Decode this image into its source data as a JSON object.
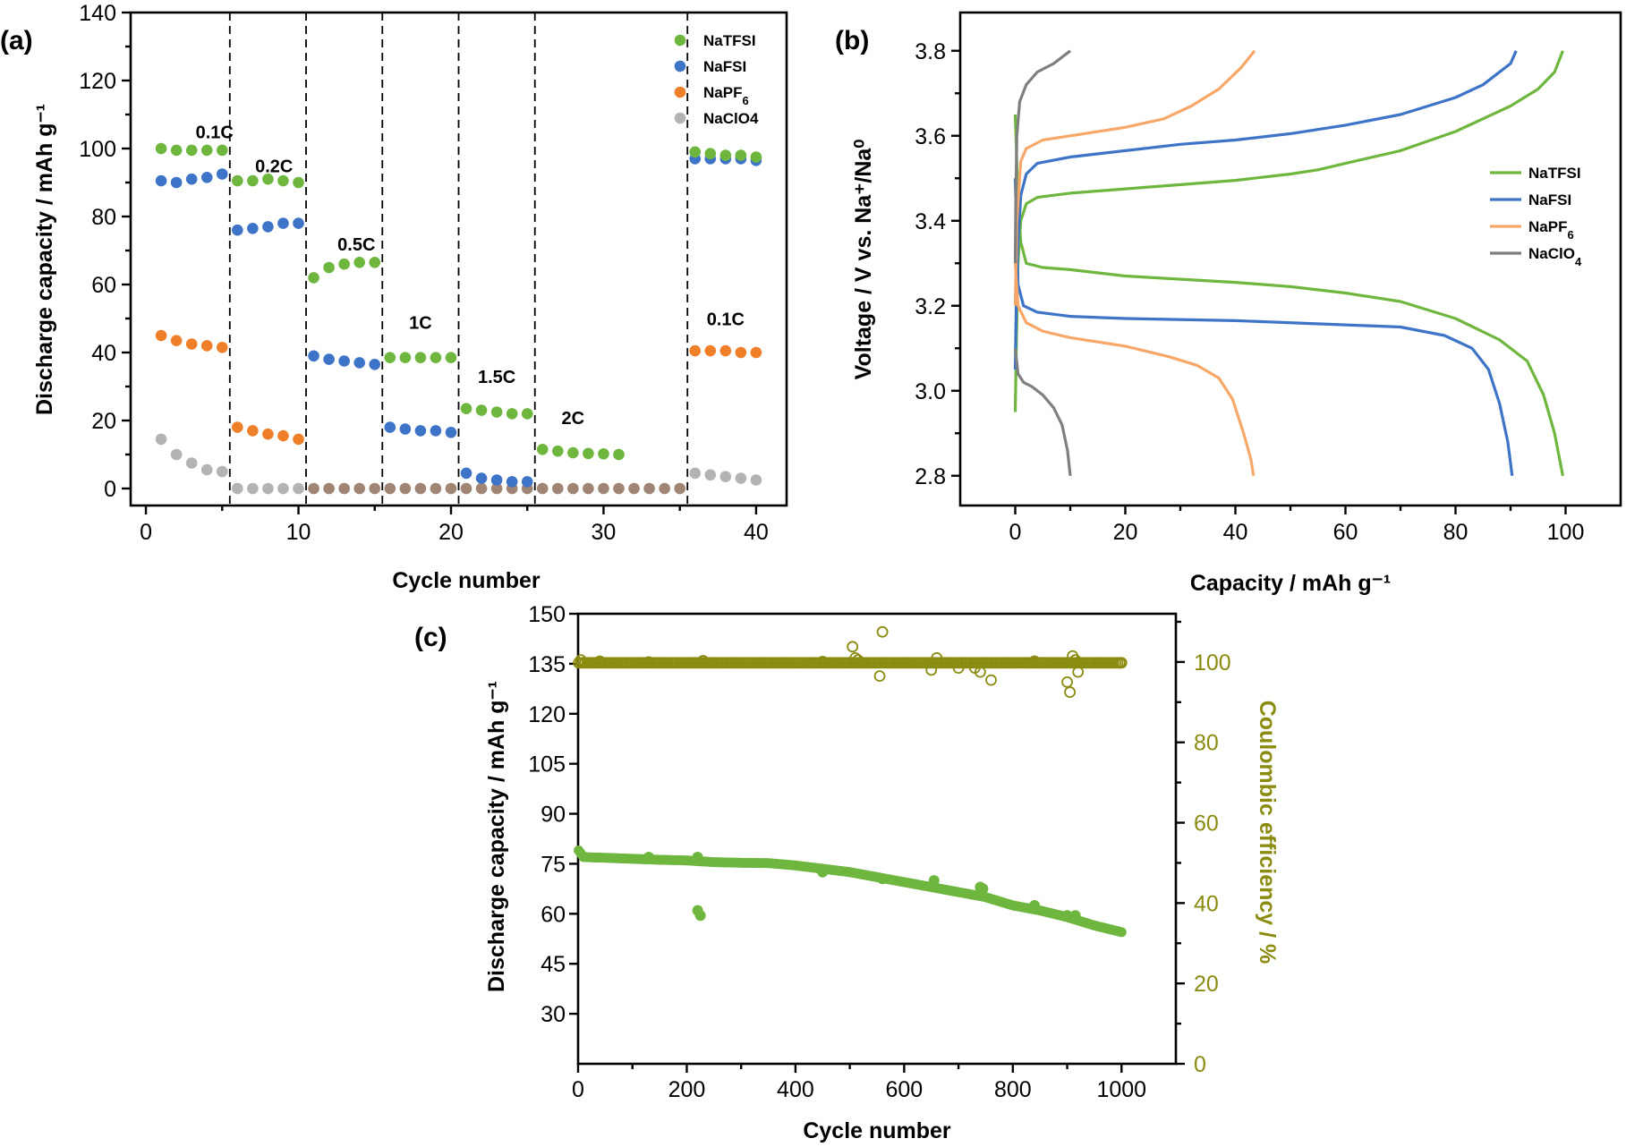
{
  "chart_data": [
    {
      "type": "scatter",
      "panel_label": "(a)",
      "xlabel": "Cycle number",
      "ylabel": "Discharge capacity / mAh g⁻¹",
      "xlim": [
        -1,
        42
      ],
      "ylim": [
        -5,
        140
      ],
      "xticks": [
        0,
        10,
        20,
        30,
        40
      ],
      "yticks": [
        0,
        20,
        40,
        60,
        80,
        100,
        120,
        140
      ],
      "dividers": [
        5.5,
        10.5,
        15.5,
        20.5,
        25.5,
        35.5
      ],
      "rate_labels": [
        {
          "text": "0.1C",
          "x": 4.5,
          "y": 103
        },
        {
          "text": "0.2C",
          "x": 8.4,
          "y": 93
        },
        {
          "text": "0.5C",
          "x": 13.8,
          "y": 70
        },
        {
          "text": "1C",
          "x": 18.0,
          "y": 47
        },
        {
          "text": "1.5C",
          "x": 23.0,
          "y": 31
        },
        {
          "text": "2C",
          "x": 28.0,
          "y": 19
        },
        {
          "text": "0.1C",
          "x": 38.0,
          "y": 48
        }
      ],
      "legend_position": "top-right",
      "series": [
        {
          "name": "NaTFSI",
          "color": "#6fb63f",
          "x": [
            1,
            2,
            3,
            4,
            5,
            6,
            7,
            8,
            9,
            10,
            11,
            12,
            13,
            14,
            15,
            16,
            17,
            18,
            19,
            20,
            21,
            22,
            23,
            24,
            25,
            26,
            27,
            28,
            29,
            30,
            31,
            36,
            37,
            38,
            39,
            40
          ],
          "values": [
            100,
            99.5,
            99.5,
            99.5,
            99.5,
            90.5,
            90.5,
            91,
            90.5,
            90,
            62,
            65,
            66,
            66.5,
            66.5,
            38.5,
            38.5,
            38.5,
            38.5,
            38.5,
            23.5,
            23,
            22.5,
            22,
            22,
            11.5,
            11,
            10.5,
            10.3,
            10.2,
            10,
            99,
            98.5,
            98,
            98,
            97.5
          ]
        },
        {
          "name": "NaFSI",
          "color": "#3e74c8",
          "x": [
            1,
            2,
            3,
            4,
            5,
            6,
            7,
            8,
            9,
            10,
            11,
            12,
            13,
            14,
            15,
            16,
            17,
            18,
            19,
            20,
            21,
            22,
            23,
            24,
            25,
            36,
            37,
            38,
            39,
            40
          ],
          "values": [
            90.5,
            90,
            91,
            91.5,
            92.5,
            76,
            76.5,
            77,
            78,
            78,
            39,
            38,
            37.5,
            37,
            36.5,
            18,
            17.5,
            17,
            17,
            16.5,
            4.5,
            3,
            2.5,
            2,
            2,
            97,
            97,
            97,
            97,
            96.5
          ]
        },
        {
          "name": "NaPF₆",
          "color": "#f07f2a",
          "x": [
            1,
            2,
            3,
            4,
            5,
            6,
            7,
            8,
            9,
            10,
            36,
            37,
            38,
            39,
            40
          ],
          "values": [
            45,
            43.5,
            42.5,
            42,
            41.5,
            18,
            17,
            16,
            15.5,
            14.5,
            40.5,
            40.5,
            40.5,
            40,
            40
          ]
        },
        {
          "name": "NaClO4",
          "color": "#b3b3b3",
          "x": [
            1,
            2,
            3,
            4,
            5,
            6,
            7,
            8,
            9,
            10,
            36,
            37,
            38,
            39,
            40
          ],
          "values": [
            14.5,
            10,
            7.5,
            5.5,
            5,
            0,
            0,
            0,
            0,
            0,
            4.5,
            4,
            3.5,
            3,
            2.5
          ]
        }
      ],
      "overlap_points": {
        "color": "#a08474",
        "x": [
          11,
          12,
          13,
          14,
          15,
          16,
          17,
          18,
          19,
          20,
          21,
          22,
          23,
          24,
          25,
          26,
          27,
          28,
          29,
          30,
          31,
          32,
          33,
          34,
          35
        ],
        "values": [
          0,
          0,
          0,
          0,
          0,
          0,
          0,
          0,
          0,
          0,
          0,
          0,
          0,
          0,
          0,
          0,
          0,
          0,
          0,
          0,
          0,
          0,
          0,
          0,
          0
        ]
      }
    },
    {
      "type": "line",
      "panel_label": "(b)",
      "xlabel": "Capacity / mAh g⁻¹",
      "ylabel": "Voltage / V vs. Na⁺/Na⁰",
      "xlim": [
        -10,
        110
      ],
      "ylim": [
        2.73,
        3.89
      ],
      "xticks": [
        0,
        20,
        40,
        60,
        80,
        100
      ],
      "yticks": [
        2.8,
        3.0,
        3.2,
        3.4,
        3.6,
        3.8
      ],
      "legend_position": "right",
      "series": [
        {
          "name": "NaTFSI",
          "color": "#6fb63f",
          "charge": [
            [
              0,
              2.95
            ],
            [
              0.2,
              3.1
            ],
            [
              0.5,
              3.3
            ],
            [
              1,
              3.4
            ],
            [
              2,
              3.44
            ],
            [
              4,
              3.455
            ],
            [
              10,
              3.465
            ],
            [
              20,
              3.475
            ],
            [
              30,
              3.485
            ],
            [
              40,
              3.495
            ],
            [
              50,
              3.51
            ],
            [
              55,
              3.52
            ],
            [
              60,
              3.535
            ],
            [
              70,
              3.565
            ],
            [
              80,
              3.61
            ],
            [
              90,
              3.67
            ],
            [
              95,
              3.71
            ],
            [
              98,
              3.75
            ],
            [
              99.5,
              3.8
            ]
          ],
          "discharge": [
            [
              0,
              3.65
            ],
            [
              0.5,
              3.45
            ],
            [
              1,
              3.35
            ],
            [
              2,
              3.3
            ],
            [
              5,
              3.29
            ],
            [
              10,
              3.285
            ],
            [
              20,
              3.27
            ],
            [
              40,
              3.255
            ],
            [
              50,
              3.245
            ],
            [
              60,
              3.23
            ],
            [
              70,
              3.21
            ],
            [
              80,
              3.17
            ],
            [
              88,
              3.12
            ],
            [
              93,
              3.07
            ],
            [
              96,
              2.99
            ],
            [
              98,
              2.9
            ],
            [
              99.5,
              2.8
            ]
          ]
        },
        {
          "name": "NaFSI",
          "color": "#3e74c8",
          "charge": [
            [
              0,
              3.05
            ],
            [
              0.3,
              3.3
            ],
            [
              1,
              3.46
            ],
            [
              2,
              3.51
            ],
            [
              4,
              3.535
            ],
            [
              10,
              3.55
            ],
            [
              20,
              3.565
            ],
            [
              30,
              3.58
            ],
            [
              40,
              3.59
            ],
            [
              50,
              3.605
            ],
            [
              60,
              3.625
            ],
            [
              70,
              3.65
            ],
            [
              80,
              3.69
            ],
            [
              85,
              3.72
            ],
            [
              90,
              3.77
            ],
            [
              91,
              3.8
            ]
          ],
          "discharge": [
            [
              0,
              3.5
            ],
            [
              0.5,
              3.25
            ],
            [
              1.5,
              3.2
            ],
            [
              4,
              3.185
            ],
            [
              10,
              3.175
            ],
            [
              20,
              3.17
            ],
            [
              40,
              3.165
            ],
            [
              60,
              3.155
            ],
            [
              70,
              3.15
            ],
            [
              78,
              3.13
            ],
            [
              83,
              3.1
            ],
            [
              86,
              3.05
            ],
            [
              88,
              2.97
            ],
            [
              89.5,
              2.88
            ],
            [
              90.3,
              2.8
            ]
          ]
        },
        {
          "name": "NaPF₆",
          "color": "#f7a768",
          "charge": [
            [
              0,
              3.2
            ],
            [
              0.3,
              3.4
            ],
            [
              1,
              3.54
            ],
            [
              2,
              3.57
            ],
            [
              5,
              3.59
            ],
            [
              10,
              3.6
            ],
            [
              20,
              3.62
            ],
            [
              27,
              3.64
            ],
            [
              32,
              3.67
            ],
            [
              37,
              3.71
            ],
            [
              41,
              3.76
            ],
            [
              43.5,
              3.8
            ]
          ],
          "discharge": [
            [
              0,
              3.3
            ],
            [
              0.5,
              3.2
            ],
            [
              2,
              3.16
            ],
            [
              5,
              3.14
            ],
            [
              10,
              3.125
            ],
            [
              20,
              3.105
            ],
            [
              28,
              3.08
            ],
            [
              33,
              3.06
            ],
            [
              37,
              3.03
            ],
            [
              39.5,
              2.98
            ],
            [
              41.5,
              2.9
            ],
            [
              42.8,
              2.84
            ],
            [
              43.3,
              2.8
            ]
          ]
        },
        {
          "name": "NaClO₄",
          "color": "#7f7f7f",
          "charge": [
            [
              0,
              3.3
            ],
            [
              0.1,
              3.45
            ],
            [
              0.3,
              3.6
            ],
            [
              0.8,
              3.68
            ],
            [
              2,
              3.72
            ],
            [
              4,
              3.75
            ],
            [
              7,
              3.77
            ],
            [
              10,
              3.8
            ]
          ],
          "discharge": [
            [
              0,
              3.1
            ],
            [
              0.5,
              3.04
            ],
            [
              1.5,
              3.02
            ],
            [
              3,
              3.01
            ],
            [
              5,
              2.99
            ],
            [
              7,
              2.96
            ],
            [
              8.5,
              2.92
            ],
            [
              9.5,
              2.86
            ],
            [
              10,
              2.8
            ]
          ]
        }
      ]
    },
    {
      "type": "scatter",
      "panel_label": "(c)",
      "xlabel": "Cycle number",
      "ylabel_left": "Discharge capacity / mAh g⁻¹",
      "ylabel_right": "Coulombic efficiency / %",
      "xlim": [
        0,
        1100
      ],
      "ylim_left": [
        15,
        150
      ],
      "ylim_right": [
        0,
        112
      ],
      "xticks": [
        0,
        200,
        400,
        600,
        800,
        1000
      ],
      "yticks_left": [
        30,
        45,
        60,
        75,
        90,
        105,
        120,
        135,
        150
      ],
      "yticks_right": [
        0,
        20,
        40,
        60,
        80,
        100
      ],
      "capacity_color": "#6fb63f",
      "efficiency_color": "#8b8b10",
      "capacity_trend": [
        [
          1,
          79
        ],
        [
          10,
          77
        ],
        [
          50,
          76.8
        ],
        [
          100,
          76.5
        ],
        [
          150,
          76.2
        ],
        [
          200,
          76
        ],
        [
          250,
          75.5
        ],
        [
          300,
          75.3
        ],
        [
          350,
          75.2
        ],
        [
          400,
          74.5
        ],
        [
          450,
          73.5
        ],
        [
          500,
          72.5
        ],
        [
          550,
          71
        ],
        [
          600,
          69.5
        ],
        [
          650,
          68
        ],
        [
          700,
          66.5
        ],
        [
          750,
          65
        ],
        [
          800,
          62.5
        ],
        [
          850,
          61
        ],
        [
          900,
          59
        ],
        [
          950,
          56.5
        ],
        [
          1000,
          54.5
        ]
      ],
      "capacity_outliers": [
        [
          220,
          61
        ],
        [
          225,
          59.5
        ],
        [
          130,
          77
        ],
        [
          220,
          77
        ],
        [
          450,
          72.5
        ],
        [
          560,
          70.5
        ],
        [
          655,
          70
        ],
        [
          740,
          68
        ],
        [
          745,
          67.5
        ],
        [
          840,
          62.5
        ],
        [
          900,
          59.5
        ],
        [
          915,
          59.5
        ]
      ],
      "efficiency_baseline": 99.8,
      "efficiency_outliers": [
        [
          5,
          100.5
        ],
        [
          40,
          100.2
        ],
        [
          130,
          100
        ],
        [
          230,
          100.3
        ],
        [
          450,
          100.1
        ],
        [
          505,
          103.8
        ],
        [
          510,
          101
        ],
        [
          515,
          100.5
        ],
        [
          555,
          96.5
        ],
        [
          560,
          107.5
        ],
        [
          650,
          98
        ],
        [
          660,
          101
        ],
        [
          700,
          98.5
        ],
        [
          730,
          98.5
        ],
        [
          740,
          97.5
        ],
        [
          760,
          95.5
        ],
        [
          840,
          100.2
        ],
        [
          900,
          95
        ],
        [
          905,
          92.5
        ],
        [
          910,
          101.5
        ],
        [
          915,
          100.5
        ],
        [
          920,
          97.5
        ],
        [
          1000,
          99.8
        ]
      ]
    }
  ]
}
